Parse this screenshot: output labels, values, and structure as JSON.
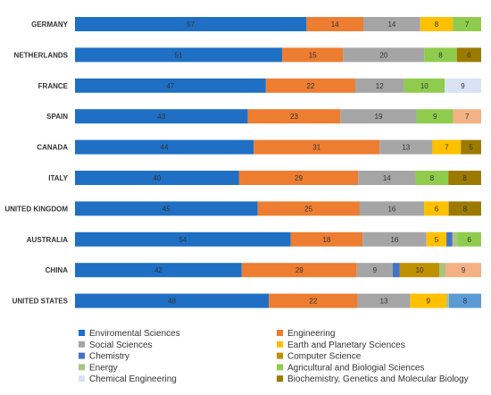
{
  "chart_data": {
    "type": "bar",
    "orientation": "horizontal",
    "stacked": true,
    "normalized_percent": true,
    "title": "",
    "xlabel": "",
    "ylabel": "",
    "grid": false,
    "legend_position": "bottom",
    "categories": [
      "GERMANY",
      "NETHERLANDS",
      "FRANCE",
      "SPAIN",
      "CANADA",
      "ITALY",
      "UNITED KINGDOM",
      "AUSTRALIA",
      "CHINA",
      "UNITED STATES"
    ],
    "series": [
      {
        "name": "Enviromental Sciences",
        "color": "#1f6fc5",
        "values": [
          57,
          51,
          47,
          43,
          44,
          40,
          45,
          54,
          42,
          48
        ],
        "labels": [
          "57",
          "51",
          "47",
          "43",
          "44",
          "40",
          "45",
          "54",
          "42",
          "48"
        ]
      },
      {
        "name": "Engineering",
        "color": "#ed7d31",
        "values": [
          14,
          15,
          22,
          23,
          31,
          29,
          25,
          18,
          29,
          22
        ],
        "labels": [
          "14",
          "15",
          "22",
          "23",
          "31",
          "29",
          "25",
          "18",
          "29",
          "22"
        ]
      },
      {
        "name": "Social Sciences",
        "color": "#a5a5a5",
        "values": [
          14,
          20,
          12,
          19,
          13,
          14,
          16,
          16,
          9,
          13
        ],
        "labels": [
          "14",
          "20",
          "12",
          "19",
          "13",
          "14",
          "16",
          "16",
          "9",
          "13"
        ]
      },
      {
        "name": "Earth and Planetary Sciences",
        "color": "#ffc000",
        "values": [
          8,
          0,
          0,
          0,
          7,
          0,
          6,
          5,
          0,
          9
        ],
        "labels": [
          "8",
          "",
          "",
          "",
          "7",
          "",
          "6",
          "5",
          "",
          "9"
        ]
      },
      {
        "name": "Chemistry",
        "color": "#4472c4",
        "values": [
          0,
          0,
          0,
          0,
          0,
          0,
          0,
          1.5,
          1.8,
          0
        ],
        "labels": [
          "",
          "",
          "",
          "",
          "",
          "",
          "",
          "",
          "",
          ""
        ]
      },
      {
        "name": "Computer Science",
        "color": "#bf9000",
        "values": [
          0,
          0,
          0,
          0,
          0,
          0,
          0,
          0,
          10,
          0
        ],
        "labels": [
          "",
          "",
          "",
          "",
          "",
          "",
          "",
          "",
          "10",
          ""
        ]
      },
      {
        "name": "Energy",
        "color": "#a9c47f",
        "values": [
          0,
          0,
          0,
          0,
          0,
          0,
          0,
          1.2,
          1.5,
          0.6
        ],
        "labels": [
          "",
          "",
          "",
          "",
          "",
          "",
          "",
          "",
          "",
          ""
        ]
      },
      {
        "name": "Agricultural and Biologial Sciences",
        "color": "#8fcc4d",
        "values": [
          7,
          8,
          10,
          9,
          0,
          8,
          0,
          6,
          0,
          0
        ],
        "labels": [
          "7",
          "8",
          "10",
          "9",
          "",
          "8",
          "",
          "6",
          "",
          ""
        ]
      },
      {
        "name": "Chemical Engineering",
        "color": "#dae3f3",
        "values": [
          0,
          0,
          9,
          0,
          0,
          0,
          0,
          0,
          0,
          0
        ],
        "labels": [
          "",
          "",
          "9",
          "",
          "",
          "",
          "",
          "",
          "",
          ""
        ]
      },
      {
        "name": "Biochemistry, Genetics and Molecular Biology",
        "color": "#9c7a00",
        "values": [
          0,
          6,
          0,
          0,
          5,
          8,
          8,
          0,
          0,
          0
        ],
        "labels": [
          "",
          "6",
          "",
          "",
          "5",
          "8",
          "8",
          "",
          "",
          ""
        ]
      },
      {
        "name": "",
        "color": "#f4b183",
        "values": [
          0,
          0,
          0,
          7,
          0,
          0,
          0,
          0,
          9,
          0
        ],
        "labels": [
          "",
          "",
          "",
          "7",
          "",
          "",
          "",
          "",
          "9",
          ""
        ]
      },
      {
        "name": "",
        "color": "#5b9bd5",
        "values": [
          0,
          0,
          0,
          0,
          0,
          0,
          0,
          0,
          0,
          8
        ],
        "labels": [
          "",
          "",
          "",
          "",
          "",
          "",
          "",
          "",
          "",
          "8"
        ]
      }
    ]
  }
}
